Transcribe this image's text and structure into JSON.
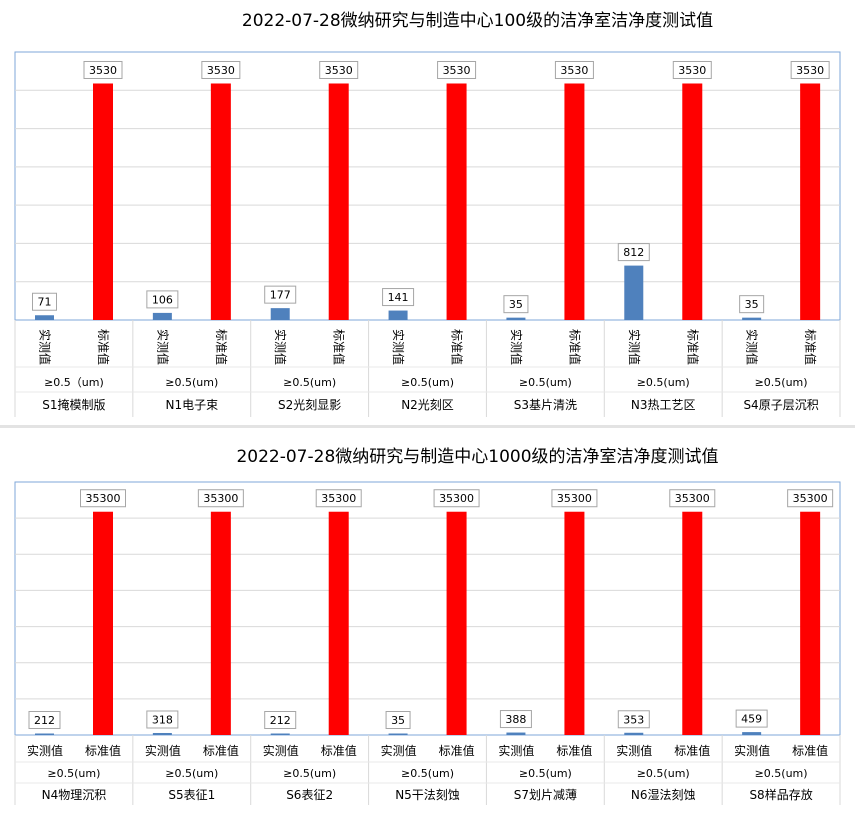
{
  "chart_data": [
    {
      "type": "bar",
      "title": "2022-07-28微纳研究与制造中心100级的洁净室洁净度测试值",
      "series_labels": [
        "实测值",
        "标准值"
      ],
      "groups": [
        {
          "spec": "≥0.5（um)",
          "name": "S1掩模制版",
          "measured": 71,
          "standard": 3530
        },
        {
          "spec": "≥0.5(um)",
          "name": "N1电子束",
          "measured": 106,
          "standard": 3530
        },
        {
          "spec": "≥0.5(um)",
          "name": "S2光刻显影",
          "measured": 177,
          "standard": 3530
        },
        {
          "spec": "≥0.5(um)",
          "name": "N2光刻区",
          "measured": 141,
          "standard": 3530
        },
        {
          "spec": "≥0.5(um)",
          "name": "S3基片清洗",
          "measured": 35,
          "standard": 3530
        },
        {
          "spec": "≥0.5(um)",
          "name": "N3热工艺区",
          "measured": 812,
          "standard": 3530
        },
        {
          "spec": "≥0.5(um)",
          "name": "S4原子层沉积",
          "measured": 35,
          "standard": 3530
        }
      ],
      "ylim": [
        0,
        4000
      ],
      "grid": true,
      "label_orientation": "vertical",
      "colors": {
        "measured": "#4f81bd",
        "standard": "#ff0000"
      }
    },
    {
      "type": "bar",
      "title": "2022-07-28微纳研究与制造中心1000级的洁净室洁净度测试值",
      "series_labels": [
        "实测值",
        "标准值"
      ],
      "groups": [
        {
          "spec": "≥0.5(um)",
          "name": "N4物理沉积",
          "measured": 212,
          "standard": 35300
        },
        {
          "spec": "≥0.5(um)",
          "name": "S5表征1",
          "measured": 318,
          "standard": 35300
        },
        {
          "spec": "≥0.5(um)",
          "name": "S6表征2",
          "measured": 212,
          "standard": 35300
        },
        {
          "spec": "≥0.5(um)",
          "name": "N5干法刻蚀",
          "measured": 35,
          "standard": 35300
        },
        {
          "spec": "≥0.5(um)",
          "name": "S7划片减薄",
          "measured": 388,
          "standard": 35300
        },
        {
          "spec": "≥0.5(um)",
          "name": "N6湿法刻蚀",
          "measured": 353,
          "standard": 35300
        },
        {
          "spec": "≥0.5(um)",
          "name": "S8样品存放",
          "measured": 459,
          "standard": 35300
        }
      ],
      "ylim": [
        0,
        40000
      ],
      "grid": true,
      "label_orientation": "horizontal",
      "colors": {
        "measured": "#4f81bd",
        "standard": "#ff0000"
      }
    }
  ]
}
